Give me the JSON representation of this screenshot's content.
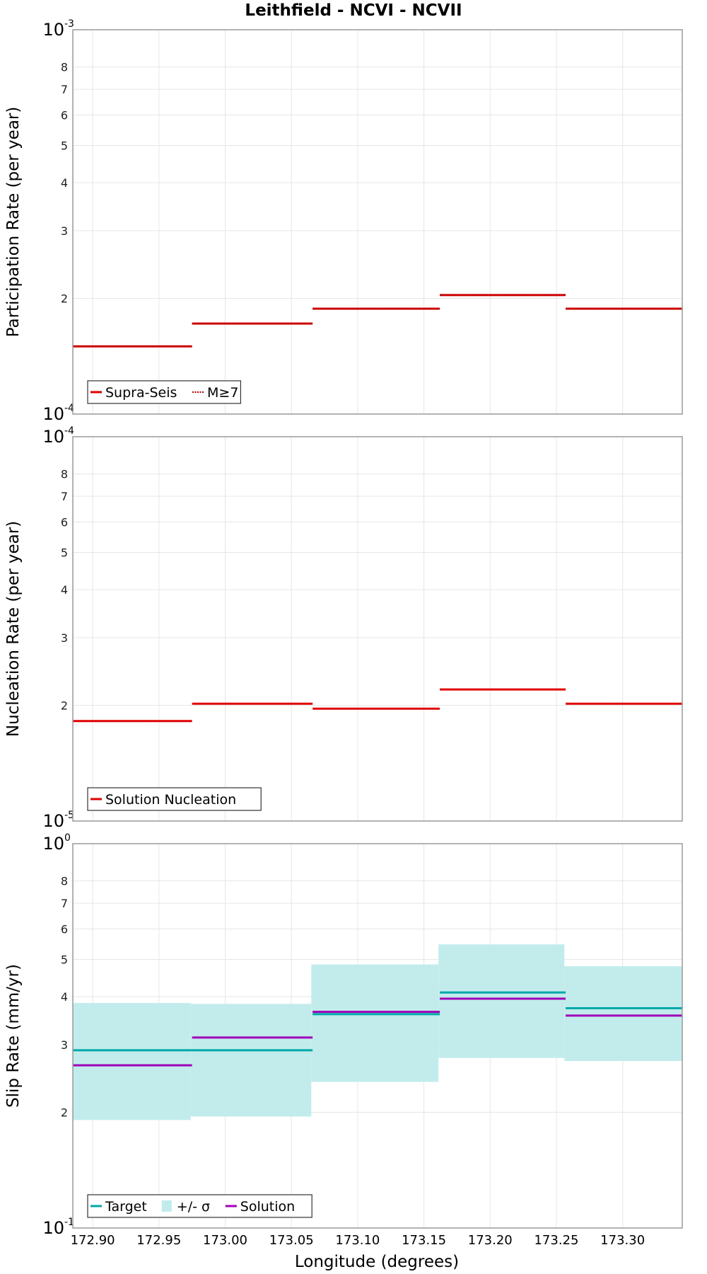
{
  "chart_data": {
    "title": "Leithfield - NCVI - NCVII",
    "xlabel": "Longitude (degrees)",
    "x_ticks": [
      "172.90",
      "172.95",
      "173.00",
      "173.05",
      "173.10",
      "173.15",
      "173.20",
      "173.25",
      "173.30"
    ],
    "xlim": [
      172.885,
      173.345
    ],
    "panels": [
      {
        "type": "line",
        "ylabel": "Participation Rate (per year)",
        "y_scale": "log",
        "ylim": [
          0.0001,
          0.001
        ],
        "y_major_ticks": [
          {
            "base": "10",
            "exp": "-4"
          },
          {
            "base": "10",
            "exp": "-3"
          }
        ],
        "y_minor_ticks": [
          "2",
          "3",
          "4",
          "5",
          "6",
          "7",
          "8"
        ],
        "legend": {
          "position": "bottom-left",
          "entries": [
            {
              "label": "Supra-Seis",
              "color": "#e00000",
              "style": "solid"
            },
            {
              "label": "M≥7",
              "color": "#e00000",
              "style": "dotted"
            }
          ]
        },
        "series": [
          {
            "name": "Supra-Seis",
            "color": "#e00000",
            "style": "solid",
            "segments": [
              {
                "x0": 172.885,
                "x1": 172.975,
                "y": 0.00015
              },
              {
                "x0": 172.975,
                "x1": 173.066,
                "y": 0.000172
              },
              {
                "x0": 173.066,
                "x1": 173.162,
                "y": 0.000188
              },
              {
                "x0": 173.162,
                "x1": 173.257,
                "y": 0.000204
              },
              {
                "x0": 173.257,
                "x1": 173.345,
                "y": 0.000188
              }
            ]
          },
          {
            "name": "M≥7",
            "color": "#e00000",
            "style": "dotted",
            "segments": [
              {
                "x0": 172.885,
                "x1": 172.975,
                "y": 0.00015
              },
              {
                "x0": 172.975,
                "x1": 173.066,
                "y": 0.000172
              },
              {
                "x0": 173.066,
                "x1": 173.162,
                "y": 0.000188
              },
              {
                "x0": 173.162,
                "x1": 173.257,
                "y": 0.000204
              },
              {
                "x0": 173.257,
                "x1": 173.345,
                "y": 0.000188
              }
            ]
          }
        ]
      },
      {
        "type": "line",
        "ylabel": "Nucleation Rate (per year)",
        "y_scale": "log",
        "ylim": [
          1e-05,
          0.0001
        ],
        "y_major_ticks": [
          {
            "base": "10",
            "exp": "-5"
          },
          {
            "base": "10",
            "exp": "-4"
          }
        ],
        "y_minor_ticks": [
          "2",
          "3",
          "4",
          "5",
          "6",
          "7",
          "8"
        ],
        "legend": {
          "position": "bottom-left",
          "entries": [
            {
              "label": "Solution Nucleation",
              "color": "#e00000",
              "style": "solid"
            }
          ]
        },
        "series": [
          {
            "name": "Solution Nucleation",
            "color": "#e00000",
            "style": "solid",
            "segments": [
              {
                "x0": 172.885,
                "x1": 172.975,
                "y": 1.82e-05
              },
              {
                "x0": 172.975,
                "x1": 173.066,
                "y": 2.02e-05
              },
              {
                "x0": 173.066,
                "x1": 173.162,
                "y": 1.96e-05
              },
              {
                "x0": 173.162,
                "x1": 173.257,
                "y": 2.2e-05
              },
              {
                "x0": 173.257,
                "x1": 173.345,
                "y": 2.02e-05
              }
            ]
          }
        ]
      },
      {
        "type": "area",
        "ylabel": "Slip Rate (mm/yr)",
        "y_scale": "log",
        "ylim": [
          0.1,
          1.0
        ],
        "y_major_ticks": [
          {
            "base": "10",
            "exp": "-1"
          },
          {
            "base": "10",
            "exp": "0"
          }
        ],
        "y_minor_ticks": [
          "2",
          "3",
          "4",
          "5",
          "6",
          "7",
          "8"
        ],
        "legend": {
          "position": "bottom-left",
          "entries": [
            {
              "label": "Target",
              "color": "#00a8a8",
              "style": "solid"
            },
            {
              "label": "+/- σ",
              "color": "#c2ecec",
              "style": "fill"
            },
            {
              "label": "Solution",
              "color": "#a000b8",
              "style": "solid"
            }
          ]
        },
        "band": {
          "name": "+/- σ",
          "color": "#c2ecec",
          "segments": [
            {
              "x0": 172.885,
              "x1": 172.974,
              "low": 0.191,
              "high": 0.385
            },
            {
              "x0": 172.974,
              "x1": 173.065,
              "low": 0.195,
              "high": 0.383
            },
            {
              "x0": 173.065,
              "x1": 173.161,
              "low": 0.24,
              "high": 0.485
            },
            {
              "x0": 173.161,
              "x1": 173.256,
              "low": 0.277,
              "high": 0.547
            },
            {
              "x0": 173.256,
              "x1": 173.345,
              "low": 0.272,
              "high": 0.48
            }
          ]
        },
        "series": [
          {
            "name": "Target",
            "color": "#00a8a8",
            "style": "solid",
            "segments": [
              {
                "x0": 172.885,
                "x1": 172.975,
                "y": 0.29
              },
              {
                "x0": 172.975,
                "x1": 173.066,
                "y": 0.29
              },
              {
                "x0": 173.066,
                "x1": 173.162,
                "y": 0.36
              },
              {
                "x0": 173.162,
                "x1": 173.257,
                "y": 0.41
              },
              {
                "x0": 173.257,
                "x1": 173.345,
                "y": 0.373
              }
            ]
          },
          {
            "name": "Solution",
            "color": "#a000b8",
            "style": "solid",
            "segments": [
              {
                "x0": 172.885,
                "x1": 172.975,
                "y": 0.265
              },
              {
                "x0": 172.975,
                "x1": 173.066,
                "y": 0.313
              },
              {
                "x0": 173.066,
                "x1": 173.162,
                "y": 0.365
              },
              {
                "x0": 173.162,
                "x1": 173.257,
                "y": 0.395
              },
              {
                "x0": 173.257,
                "x1": 173.345,
                "y": 0.357
              }
            ]
          }
        ]
      }
    ]
  }
}
